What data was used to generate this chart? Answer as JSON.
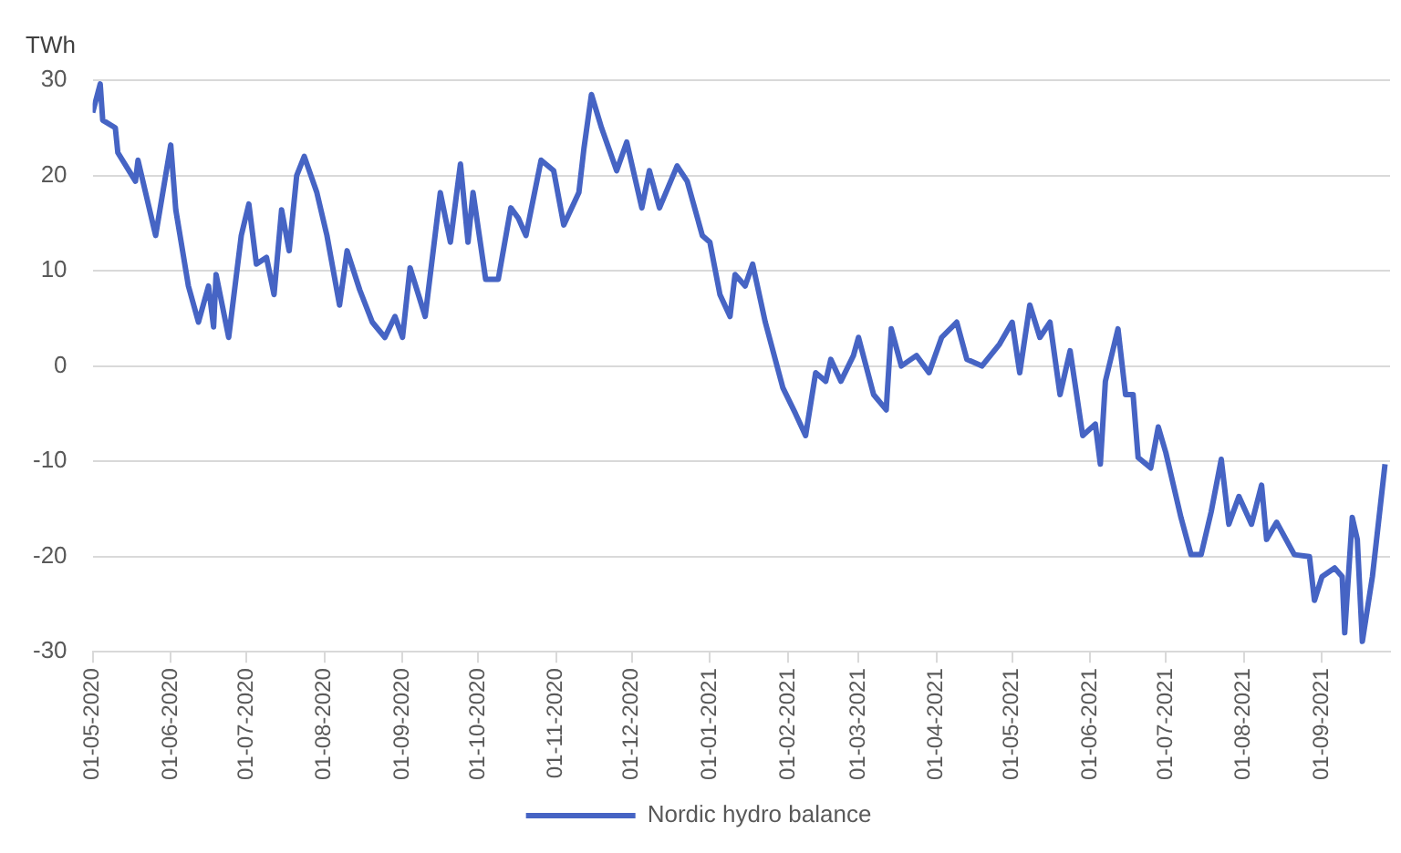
{
  "chart_data": {
    "type": "line",
    "ylabel": "TWh",
    "x": [
      "2020-05-01",
      "2020-05-04",
      "2020-05-05",
      "2020-05-10",
      "2020-05-11",
      "2020-05-18",
      "2020-05-19",
      "2020-05-26",
      "2020-06-01",
      "2020-06-03",
      "2020-06-08",
      "2020-06-12",
      "2020-06-16",
      "2020-06-18",
      "2020-06-19",
      "2020-06-24",
      "2020-06-29",
      "2020-07-02",
      "2020-07-05",
      "2020-07-09",
      "2020-07-12",
      "2020-07-15",
      "2020-07-18",
      "2020-07-21",
      "2020-07-24",
      "2020-07-29",
      "2020-08-02",
      "2020-08-07",
      "2020-08-10",
      "2020-08-15",
      "2020-08-20",
      "2020-08-25",
      "2020-08-29",
      "2020-09-01",
      "2020-09-04",
      "2020-09-10",
      "2020-09-16",
      "2020-09-20",
      "2020-09-24",
      "2020-09-27",
      "2020-09-29",
      "2020-10-04",
      "2020-10-09",
      "2020-10-14",
      "2020-10-17",
      "2020-10-20",
      "2020-10-26",
      "2020-10-31",
      "2020-11-04",
      "2020-11-10",
      "2020-11-12",
      "2020-11-15",
      "2020-11-19",
      "2020-11-25",
      "2020-11-29",
      "2020-12-05",
      "2020-12-08",
      "2020-12-12",
      "2020-12-19",
      "2020-12-23",
      "2020-12-29",
      "2021-01-01",
      "2021-01-05",
      "2021-01-09",
      "2021-01-11",
      "2021-01-15",
      "2021-01-18",
      "2021-01-23",
      "2021-01-30",
      "2021-02-04",
      "2021-02-08",
      "2021-02-12",
      "2021-02-16",
      "2021-02-18",
      "2021-02-22",
      "2021-02-27",
      "2021-03-01",
      "2021-03-07",
      "2021-03-12",
      "2021-03-14",
      "2021-03-18",
      "2021-03-24",
      "2021-03-29",
      "2021-04-03",
      "2021-04-09",
      "2021-04-13",
      "2021-04-19",
      "2021-04-26",
      "2021-05-01",
      "2021-05-04",
      "2021-05-08",
      "2021-05-12",
      "2021-05-16",
      "2021-05-20",
      "2021-05-24",
      "2021-05-29",
      "2021-06-03",
      "2021-06-05",
      "2021-06-07",
      "2021-06-12",
      "2021-06-15",
      "2021-06-18",
      "2021-06-20",
      "2021-06-25",
      "2021-06-28",
      "2021-07-01",
      "2021-07-07",
      "2021-07-11",
      "2021-07-15",
      "2021-07-19",
      "2021-07-23",
      "2021-07-26",
      "2021-07-30",
      "2021-08-04",
      "2021-08-08",
      "2021-08-10",
      "2021-08-14",
      "2021-08-21",
      "2021-08-27",
      "2021-08-29",
      "2021-09-01",
      "2021-09-06",
      "2021-09-09",
      "2021-09-10",
      "2021-09-13",
      "2021-09-15",
      "2021-09-17",
      "2021-09-21",
      "2021-09-26"
    ],
    "series": [
      {
        "name": "Nordic hydro balance",
        "color": "#4664c4",
        "values": [
          26.6,
          29.6,
          25.8,
          25,
          22.4,
          19.4,
          21.6,
          13.7,
          23.2,
          16.4,
          8.4,
          4.6,
          8.4,
          4.1,
          9.6,
          3,
          13.7,
          17,
          10.7,
          11.4,
          7.5,
          16.4,
          12.1,
          20,
          22,
          18.2,
          13.7,
          6.4,
          12.1,
          8,
          4.6,
          3,
          5.2,
          3,
          10.3,
          5.2,
          18.2,
          13,
          21.2,
          13,
          18.2,
          9.1,
          9.1,
          16.6,
          15.5,
          13.7,
          21.6,
          20.5,
          14.8,
          18.2,
          22.8,
          28.5,
          25,
          20.5,
          23.5,
          16.6,
          20.5,
          16.6,
          21,
          19.4,
          13.7,
          13,
          7.5,
          5.2,
          9.6,
          8.4,
          10.7,
          4.6,
          -2.3,
          -5,
          -7.3,
          -0.7,
          -1.6,
          0.7,
          -1.6,
          1.1,
          3,
          -3,
          -4.6,
          3.9,
          0,
          1.1,
          -0.7,
          3,
          4.6,
          0.7,
          0,
          2.3,
          4.6,
          -0.7,
          6.4,
          3,
          4.6,
          -3,
          1.6,
          -7.3,
          -6.1,
          -10.3,
          -1.6,
          3.9,
          -3,
          -3,
          -9.6,
          -10.7,
          -6.4,
          -9.1,
          -15.9,
          -19.8,
          -19.8,
          -15.3,
          -9.8,
          -16.6,
          -13.7,
          -16.6,
          -12.5,
          -18.2,
          -16.4,
          -19.8,
          -20,
          -24.6,
          -22.1,
          -21.2,
          -22.1,
          -28,
          -15.9,
          -18.2,
          -28.9,
          -22.1,
          -10.3
        ]
      }
    ],
    "xlim": [
      "2020-05-01",
      "2021-09-28"
    ],
    "xticks": [
      {
        "value": "2020-05-01",
        "label": "01-05-2020"
      },
      {
        "value": "2020-06-01",
        "label": "01-06-2020"
      },
      {
        "value": "2020-07-01",
        "label": "01-07-2020"
      },
      {
        "value": "2020-08-01",
        "label": "01-08-2020"
      },
      {
        "value": "2020-09-01",
        "label": "01-09-2020"
      },
      {
        "value": "2020-10-01",
        "label": "01-10-2020"
      },
      {
        "value": "2020-11-01",
        "label": "01-11-2020"
      },
      {
        "value": "2020-12-01",
        "label": "01-12-2020"
      },
      {
        "value": "2021-01-01",
        "label": "01-01-2021"
      },
      {
        "value": "2021-02-01",
        "label": "01-02-2021"
      },
      {
        "value": "2021-03-01",
        "label": "01-03-2021"
      },
      {
        "value": "2021-04-01",
        "label": "01-04-2021"
      },
      {
        "value": "2021-05-01",
        "label": "01-05-2021"
      },
      {
        "value": "2021-06-01",
        "label": "01-06-2021"
      },
      {
        "value": "2021-07-01",
        "label": "01-07-2021"
      },
      {
        "value": "2021-08-01",
        "label": "01-08-2021"
      },
      {
        "value": "2021-09-01",
        "label": "01-09-2021"
      }
    ],
    "ylim": [
      -30,
      30
    ],
    "yticks": [
      -30,
      -20,
      -10,
      0,
      10,
      20,
      30
    ],
    "grid": "y",
    "legend": "bottom",
    "marker": "none",
    "line_style": "solid"
  }
}
